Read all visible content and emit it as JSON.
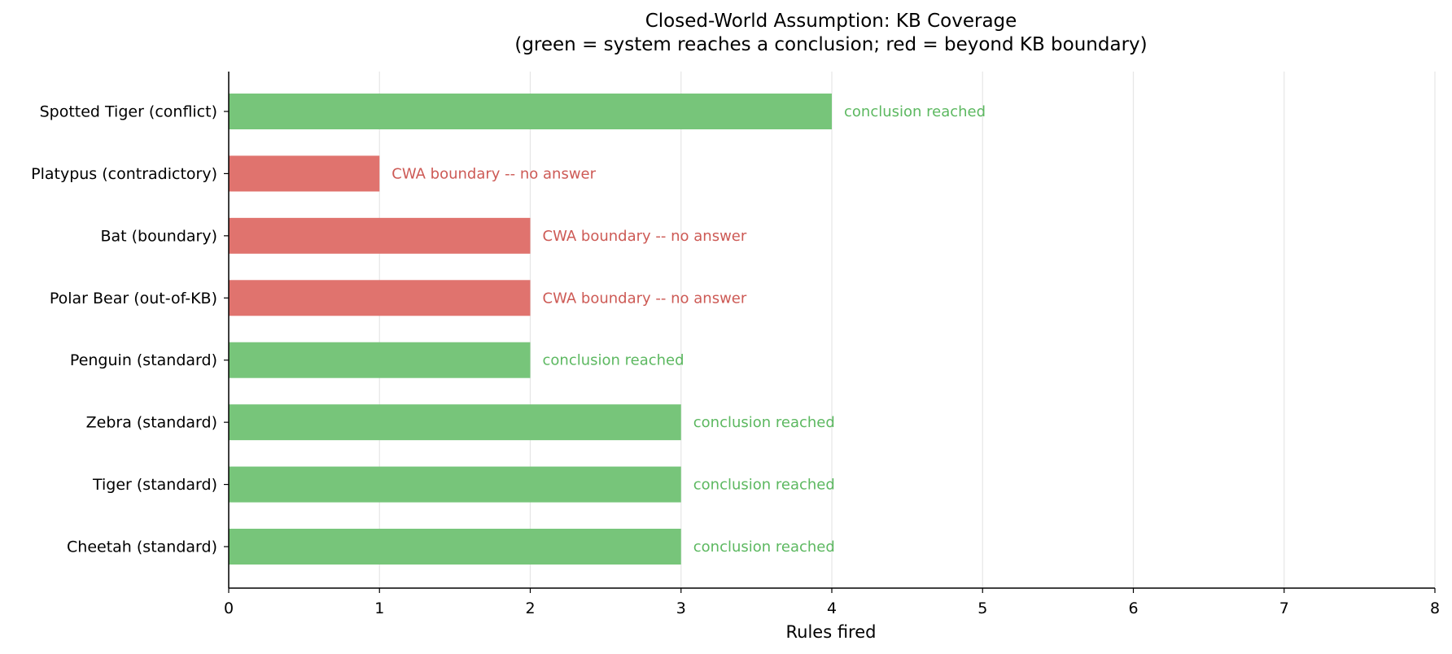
{
  "chart_data": {
    "type": "bar",
    "orientation": "horizontal",
    "title": "Closed-World Assumption: KB Coverage",
    "subtitle": "(green = system reaches a conclusion;  red = beyond KB boundary)",
    "xlabel": "Rules fired",
    "ylabel": "",
    "xlim": [
      0,
      8
    ],
    "xticks": [
      0,
      1,
      2,
      3,
      4,
      5,
      6,
      7,
      8
    ],
    "grid": "vertical",
    "colors": {
      "conclusion": "#77c57a",
      "boundary": "#e0736e",
      "conclusion_text": "#5cb860",
      "boundary_text": "#cd5a55"
    },
    "categories": [
      "Spotted Tiger (conflict)",
      "Platypus (contradictory)",
      "Bat (boundary)",
      "Polar Bear (out-of-KB)",
      "Penguin (standard)",
      "Zebra (standard)",
      "Tiger (standard)",
      "Cheetah (standard)"
    ],
    "values": [
      4,
      1,
      2,
      2,
      2,
      3,
      3,
      3
    ],
    "status": [
      "conclusion",
      "boundary",
      "boundary",
      "boundary",
      "conclusion",
      "conclusion",
      "conclusion",
      "conclusion"
    ],
    "annotations": [
      "conclusion reached",
      "CWA boundary -- no answer",
      "CWA boundary -- no answer",
      "CWA boundary -- no answer",
      "conclusion reached",
      "conclusion reached",
      "conclusion reached",
      "conclusion reached"
    ]
  }
}
